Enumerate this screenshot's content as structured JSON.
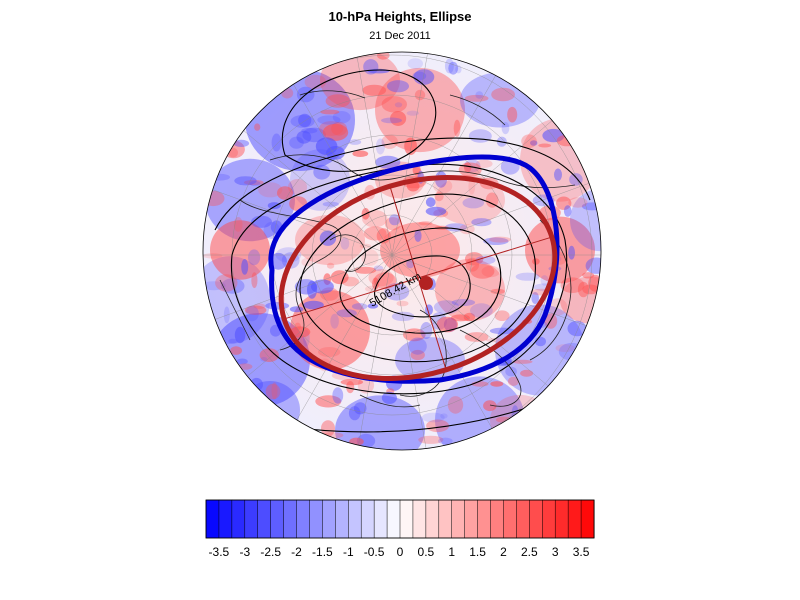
{
  "title": "10-hPa Heights, Ellipse",
  "subtitle": "21 Dec 2011",
  "annotation": "5108.42 km",
  "colors": {
    "ellipse_fit": "#b22222",
    "vortex_edge": "#0000d0",
    "contours": "#000000",
    "negative": "#0000ff",
    "positive": "#ff0000"
  },
  "colorbar": {
    "tick_labels": [
      "-3.5",
      "-3",
      "-2.5",
      "-2",
      "-1.5",
      "-1",
      "-0.5",
      "0",
      "0.5",
      "1",
      "1.5",
      "2",
      "2.5",
      "3",
      "3.5"
    ],
    "levels_min": -3.75,
    "levels_max": 3.75,
    "levels_step": 0.25
  },
  "map": {
    "projection": "polar-stereographic",
    "hemisphere": "north"
  }
}
